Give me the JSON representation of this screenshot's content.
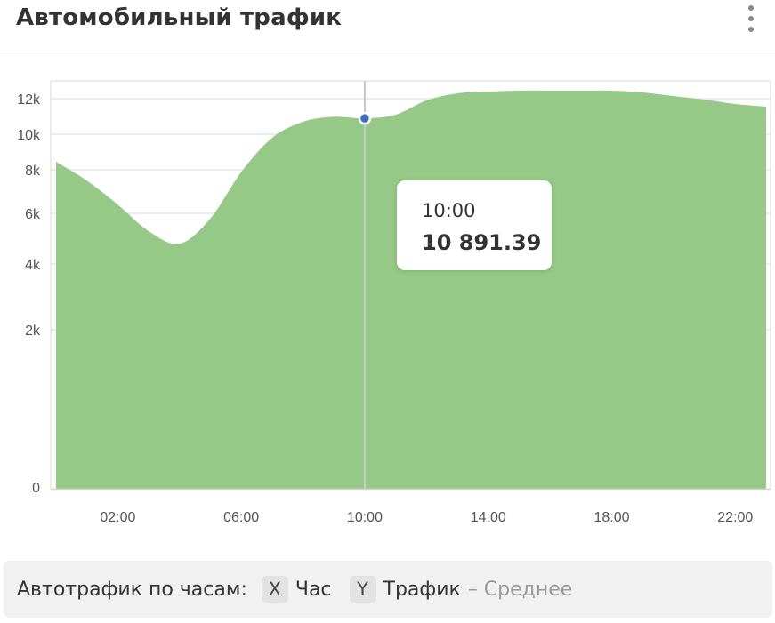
{
  "header": {
    "title": "Автомобильный трафик",
    "menu_icon": "more-vertical-icon"
  },
  "colors": {
    "area": "#96c987",
    "marker": "#3d6fb6",
    "grid": "#e6e6e6"
  },
  "chart_data": {
    "type": "area",
    "x_label_ticks": [
      "02:00",
      "06:00",
      "10:00",
      "14:00",
      "18:00",
      "22:00"
    ],
    "y_ticks": [
      0,
      2000,
      4000,
      6000,
      8000,
      10000,
      12000
    ],
    "y_tick_labels": [
      "0",
      "2k",
      "4k",
      "6k",
      "8k",
      "10k",
      "12k"
    ],
    "series": [
      {
        "x": [
          "00:00",
          "01:00",
          "02:00",
          "03:00",
          "04:00",
          "05:00",
          "06:00",
          "07:00",
          "08:00",
          "09:00",
          "10:00",
          "11:00",
          "12:00",
          "13:00",
          "14:00",
          "15:00",
          "16:00",
          "17:00",
          "18:00",
          "19:00",
          "20:00",
          "21:00",
          "22:00",
          "23:00"
        ],
        "values": [
          8450,
          7500,
          6400,
          5300,
          4800,
          5800,
          7900,
          9800,
          10700,
          10980,
          10891.39,
          11100,
          11900,
          12300,
          12400,
          12450,
          12450,
          12450,
          12450,
          12350,
          12150,
          11950,
          11700,
          11550
        ]
      }
    ],
    "ylim": [
      0,
      12600
    ],
    "tooltip": {
      "x": "10:00",
      "value": "10 891.39"
    }
  },
  "footer": {
    "label": "Автотрафик по часам",
    "colon": ":",
    "x_badge": "X",
    "x_name": "Час",
    "y_badge": "Y",
    "y_name": "Трафик",
    "y_agg": "– Среднее"
  }
}
